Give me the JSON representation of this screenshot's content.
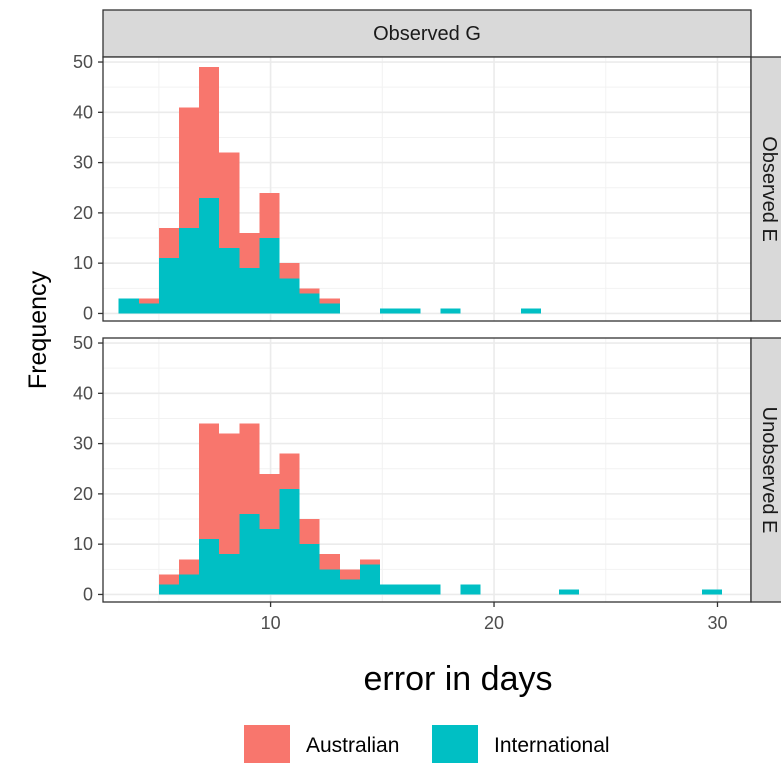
{
  "chart_data": {
    "type": "bar",
    "subtype": "stacked-histogram-faceted",
    "xlabel": "error in days",
    "ylabel": "Frequency",
    "xlim": [
      2.5,
      31.5
    ],
    "ylim": [
      -1.5,
      51
    ],
    "x_ticks": [
      10,
      20,
      30
    ],
    "y_ticks": [
      0,
      10,
      20,
      30,
      40,
      50
    ],
    "bin_width": 0.9,
    "column_strip": "Observed G",
    "grid": true,
    "legend_position": "bottom",
    "series": [
      {
        "name": "Australian",
        "color": "#F8766D"
      },
      {
        "name": "International",
        "color": "#00BFC4"
      }
    ],
    "panels": [
      {
        "row_strip": "Observed E",
        "bins": [
          {
            "x0": 3.2,
            "International": 3,
            "Australian": 0
          },
          {
            "x0": 4.1,
            "International": 2,
            "Australian": 1
          },
          {
            "x0": 5.0,
            "International": 11,
            "Australian": 6
          },
          {
            "x0": 5.9,
            "International": 17,
            "Australian": 24
          },
          {
            "x0": 6.8,
            "International": 23,
            "Australian": 26
          },
          {
            "x0": 7.7,
            "International": 13,
            "Australian": 19
          },
          {
            "x0": 8.6,
            "International": 9,
            "Australian": 7
          },
          {
            "x0": 9.5,
            "International": 15,
            "Australian": 9
          },
          {
            "x0": 10.4,
            "International": 7,
            "Australian": 3
          },
          {
            "x0": 11.3,
            "International": 4,
            "Australian": 1
          },
          {
            "x0": 12.2,
            "International": 2,
            "Australian": 1
          },
          {
            "x0": 14.9,
            "International": 1,
            "Australian": 0
          },
          {
            "x0": 15.8,
            "International": 1,
            "Australian": 0
          },
          {
            "x0": 17.6,
            "International": 1,
            "Australian": 0
          },
          {
            "x0": 21.2,
            "International": 1,
            "Australian": 0
          }
        ]
      },
      {
        "row_strip": "Unobserved E",
        "bins": [
          {
            "x0": 5.0,
            "International": 2,
            "Australian": 2
          },
          {
            "x0": 5.9,
            "International": 4,
            "Australian": 3
          },
          {
            "x0": 6.8,
            "International": 11,
            "Australian": 23
          },
          {
            "x0": 7.7,
            "International": 8,
            "Australian": 24
          },
          {
            "x0": 8.6,
            "International": 16,
            "Australian": 18
          },
          {
            "x0": 9.5,
            "International": 13,
            "Australian": 11
          },
          {
            "x0": 10.4,
            "International": 21,
            "Australian": 7
          },
          {
            "x0": 11.3,
            "International": 10,
            "Australian": 5
          },
          {
            "x0": 12.2,
            "International": 5,
            "Australian": 3
          },
          {
            "x0": 13.1,
            "International": 3,
            "Australian": 2
          },
          {
            "x0": 14.0,
            "International": 6,
            "Australian": 1
          },
          {
            "x0": 14.9,
            "International": 2,
            "Australian": 0
          },
          {
            "x0": 15.8,
            "International": 2,
            "Australian": 0
          },
          {
            "x0": 16.7,
            "International": 2,
            "Australian": 0
          },
          {
            "x0": 18.5,
            "International": 2,
            "Australian": 0
          },
          {
            "x0": 22.9,
            "International": 1,
            "Australian": 0
          },
          {
            "x0": 29.3,
            "International": 1,
            "Australian": 0
          }
        ]
      }
    ]
  }
}
